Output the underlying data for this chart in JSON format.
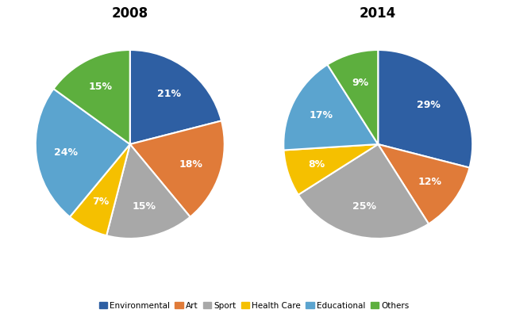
{
  "title_2008": "2008",
  "title_2014": "2014",
  "categories": [
    "Environmental",
    "Art",
    "Sport",
    "Health Care",
    "Educational",
    "Others"
  ],
  "colors": [
    "#2E5FA3",
    "#E07B39",
    "#A8A8A8",
    "#F5C000",
    "#5BA4CF",
    "#5DAF3E"
  ],
  "values_2008": [
    21,
    18,
    15,
    7,
    24,
    15
  ],
  "values_2014": [
    29,
    12,
    25,
    8,
    17,
    9
  ],
  "startangle_2008": 90,
  "startangle_2014": 90,
  "legend_labels": [
    "Environmental",
    "Art",
    "Sport",
    "Health Care",
    "Educational",
    "Others"
  ],
  "title_fontsize": 12,
  "label_fontsize": 9,
  "pctdistance_2008": 0.68,
  "pctdistance_2014": 0.68
}
